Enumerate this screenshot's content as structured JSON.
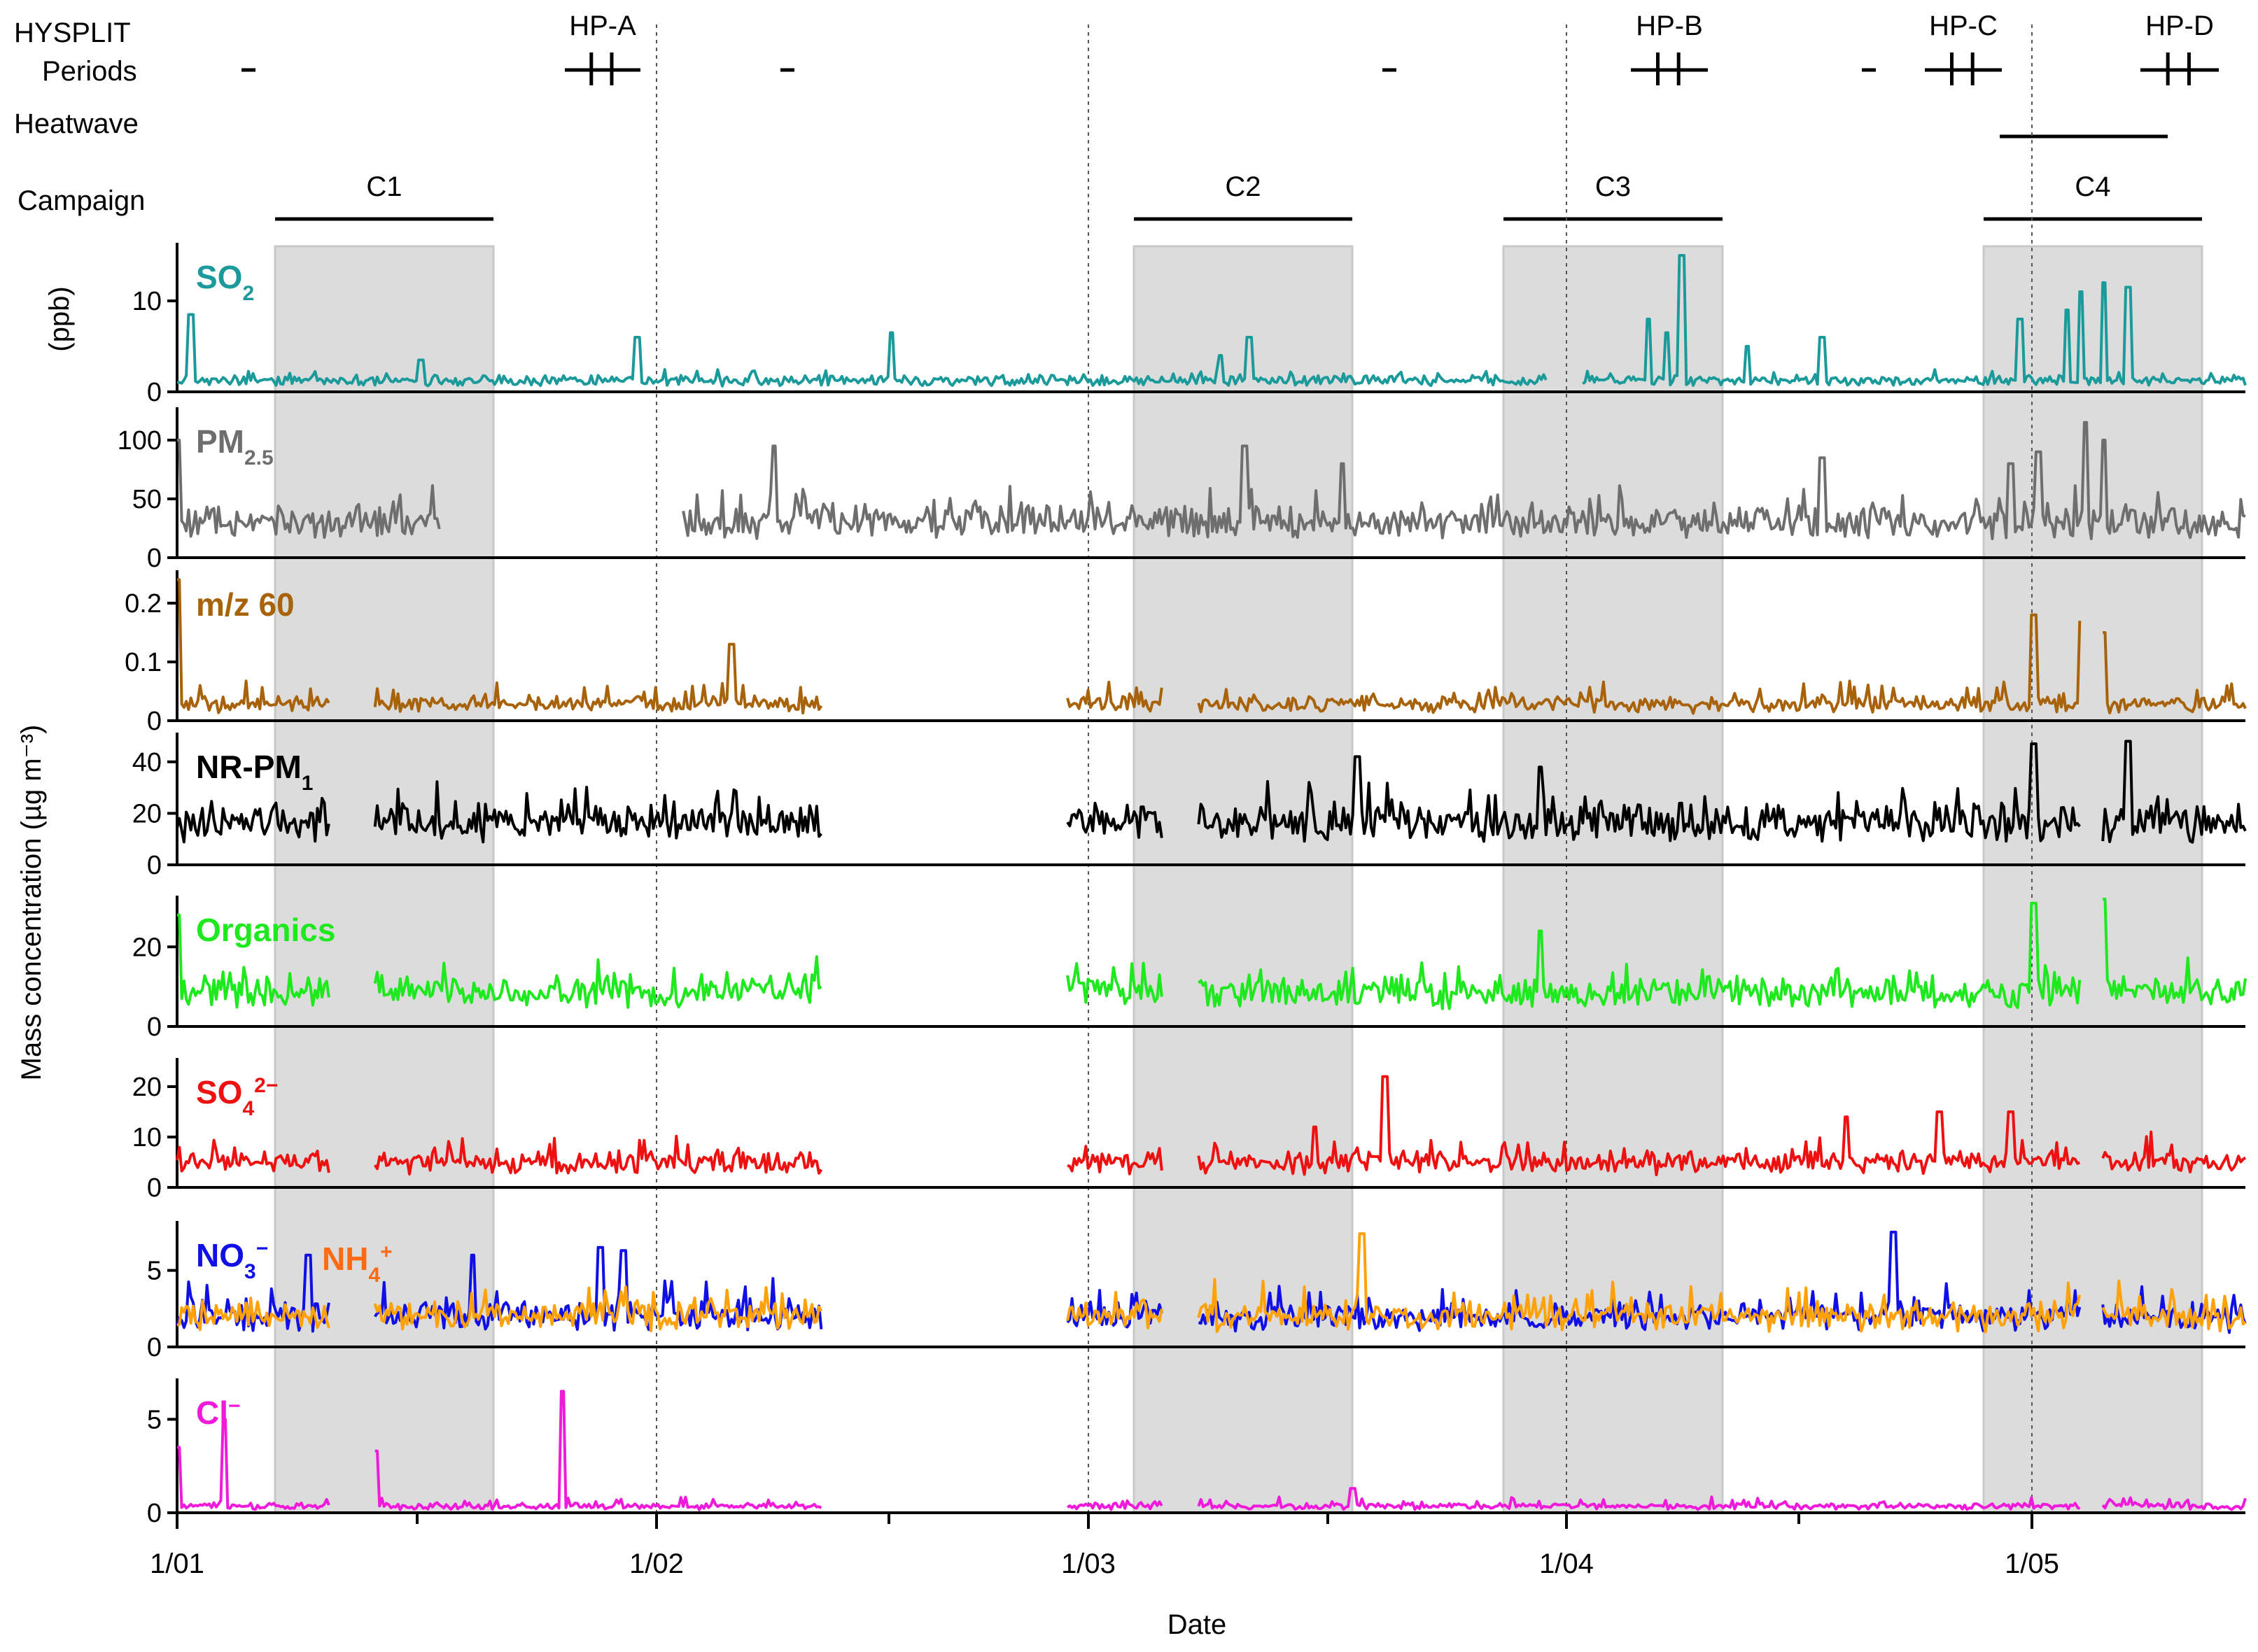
{
  "chart_data": {
    "type": "line",
    "xlabel": "Date",
    "ylabel_left": "Mass concentration (µg m⁻³)",
    "x_ticks": [
      "1/01",
      "1/02",
      "1/03",
      "1/04",
      "1/05"
    ],
    "x_range_days": [
      0,
      4.3
    ],
    "top_rows": {
      "hysplit_label": [
        "HYSPLIT",
        "Periods"
      ],
      "heatwave_label": "Heatwave",
      "campaign_label": "Campaign",
      "hysplit_periods": [
        {
          "name": "HP-A",
          "start": 0.82,
          "end": 0.97
        },
        {
          "name": "HP-B",
          "start": 4.14,
          "end": 4.29
        },
        {
          "name": "HP-C",
          "start": 4.74,
          "end": 4.89
        },
        {
          "name": "HP-D",
          "start": 5.23,
          "end": 5.39
        }
      ],
      "hysplit_dashes": [
        0.15,
        1.27,
        2.52,
        3.52
      ],
      "heatwave": {
        "start": 3.9,
        "end": 4.25
      },
      "campaigns": [
        {
          "name": "C1",
          "start": 0.2,
          "end": 0.66
        },
        {
          "name": "C2",
          "start": 2.1,
          "end": 2.55
        },
        {
          "name": "C3",
          "start": 2.87,
          "end": 3.33
        },
        {
          "name": "C4",
          "start": 3.88,
          "end": 4.33
        }
      ]
    },
    "grid_dotted_days": [
      1.0,
      1.9,
      2.9,
      3.9
    ],
    "panels": [
      {
        "name": "SO2",
        "label_main": "SO",
        "label_sub": "2",
        "label_sup": "",
        "unit": "(ppb)",
        "color": "#1a9a9a",
        "ylim": [
          0,
          16
        ],
        "yticks": [
          0,
          10
        ],
        "gaps": [
          [
            2.85,
            2.92
          ]
        ],
        "base": 1.0,
        "noise": 0.6,
        "spikes": [
          [
            0.03,
            8.5
          ],
          [
            0.52,
            3.5
          ],
          [
            0.98,
            6
          ],
          [
            1.52,
            6.5
          ],
          [
            2.22,
            4
          ],
          [
            2.28,
            6
          ],
          [
            3.13,
            8
          ],
          [
            3.17,
            6.5
          ],
          [
            3.2,
            15
          ],
          [
            3.34,
            5
          ],
          [
            3.5,
            6
          ],
          [
            3.92,
            8
          ],
          [
            4.05,
            11
          ],
          [
            4.1,
            12
          ],
          [
            4.15,
            11.5
          ],
          [
            4.02,
            9
          ]
        ]
      },
      {
        "name": "PM2.5",
        "label_main": "PM",
        "label_sub": "2.5",
        "label_sup": "",
        "unit": "",
        "color": "#6e6e6e",
        "ylim": [
          0,
          125
        ],
        "yticks": [
          0,
          50,
          100
        ],
        "gaps": [
          [
            0.55,
            1.05
          ]
        ],
        "base": 25,
        "noise": 14,
        "spikes": [
          [
            0.0,
            100
          ],
          [
            1.27,
            95
          ],
          [
            2.27,
            95
          ],
          [
            2.48,
            80
          ],
          [
            3.5,
            85
          ],
          [
            3.9,
            80
          ],
          [
            3.96,
            90
          ],
          [
            4.06,
            115
          ],
          [
            4.1,
            100
          ]
        ]
      },
      {
        "name": "m/z 60",
        "label_main": "m/z 60",
        "label_sub": "",
        "label_sup": "",
        "unit": "",
        "color": "#a8630a",
        "ylim": [
          0,
          0.25
        ],
        "yticks": [
          0.0,
          0.1,
          0.2
        ],
        "gaps": [
          [
            0.32,
            0.41
          ],
          [
            1.34,
            1.85
          ],
          [
            2.05,
            2.12
          ],
          [
            3.96,
            4.0
          ]
        ],
        "base": 0.02,
        "noise": 0.02,
        "spikes": [
          [
            0.0,
            0.24
          ],
          [
            1.18,
            0.13
          ],
          [
            3.95,
            0.18
          ],
          [
            4.05,
            0.17
          ],
          [
            4.1,
            0.15
          ]
        ]
      },
      {
        "name": "NR-PM1",
        "label_main": "NR-PM",
        "label_sub": "1",
        "label_sup": "",
        "unit": "",
        "color": "#000000",
        "ylim": [
          0,
          50
        ],
        "yticks": [
          0,
          20,
          40
        ],
        "gaps": [
          [
            0.32,
            0.41
          ],
          [
            1.34,
            1.85
          ],
          [
            2.05,
            2.12
          ],
          [
            3.96,
            4.0
          ]
        ],
        "base": 14,
        "noise": 6,
        "spikes": [
          [
            2.51,
            42
          ],
          [
            2.9,
            38
          ],
          [
            3.95,
            47
          ],
          [
            4.06,
            50
          ],
          [
            4.15,
            48
          ]
        ]
      },
      {
        "name": "Organics",
        "label_main": "Organics",
        "label_sub": "",
        "label_sup": "",
        "unit": "",
        "color": "#1ee81e",
        "ylim": [
          0,
          32
        ],
        "yticks": [
          0,
          20
        ],
        "gaps": [
          [
            0.32,
            0.41
          ],
          [
            1.34,
            1.85
          ],
          [
            2.05,
            2.12
          ],
          [
            3.96,
            4.0
          ]
        ],
        "base": 7,
        "noise": 4,
        "spikes": [
          [
            0.0,
            28
          ],
          [
            2.9,
            24
          ],
          [
            3.95,
            31
          ],
          [
            4.1,
            32
          ]
        ]
      },
      {
        "name": "SO4 2-",
        "label_main": "SO",
        "label_sub": "4",
        "label_sup": "2−",
        "unit": "",
        "color": "#ee1111",
        "ylim": [
          0,
          25
        ],
        "yticks": [
          0,
          10,
          20
        ],
        "gaps": [
          [
            0.32,
            0.41
          ],
          [
            1.34,
            1.85
          ],
          [
            2.05,
            2.12
          ],
          [
            3.96,
            4.0
          ]
        ],
        "base": 4,
        "noise": 2.5,
        "spikes": [
          [
            2.57,
            22
          ],
          [
            2.42,
            12
          ],
          [
            3.55,
            14
          ],
          [
            3.75,
            15
          ],
          [
            3.9,
            15
          ]
        ]
      },
      {
        "name": "NO3- / NH4+",
        "label_main": "NO",
        "label_sub": "3",
        "label_sup": "−",
        "label2_main": "NH",
        "label2_sub": "4",
        "label2_sup": "+",
        "label2_color": "#ff6a13",
        "unit": "",
        "color": "#1010e6",
        "color2": "#ffa20a",
        "ylim": [
          0,
          8
        ],
        "yticks": [
          0,
          5
        ],
        "gaps": [
          [
            0.32,
            0.41
          ],
          [
            1.34,
            1.85
          ],
          [
            2.05,
            2.12
          ],
          [
            3.96,
            4.0
          ]
        ],
        "base": 1.5,
        "noise": 1.2,
        "spikes": [
          [
            0.28,
            6
          ],
          [
            0.63,
            6
          ],
          [
            0.9,
            6.5
          ],
          [
            0.95,
            6.3
          ],
          [
            3.65,
            7.5
          ],
          [
            4.07,
            8
          ]
        ]
      },
      {
        "name": "Cl-",
        "label_main": "Cl",
        "label_sub": "",
        "label_sup": "−",
        "unit": "",
        "color": "#f01adb",
        "ylim": [
          0,
          7
        ],
        "yticks": [
          0,
          5
        ],
        "gaps": [
          [
            0.32,
            0.41
          ],
          [
            1.34,
            1.85
          ],
          [
            2.05,
            2.12
          ],
          [
            3.96,
            4.0
          ]
        ],
        "base": 0.25,
        "noise": 0.25,
        "spikes": [
          [
            0.0,
            3.5
          ],
          [
            0.1,
            5
          ],
          [
            0.42,
            3.3
          ],
          [
            0.82,
            6.5
          ],
          [
            2.5,
            1.3
          ]
        ]
      }
    ]
  }
}
